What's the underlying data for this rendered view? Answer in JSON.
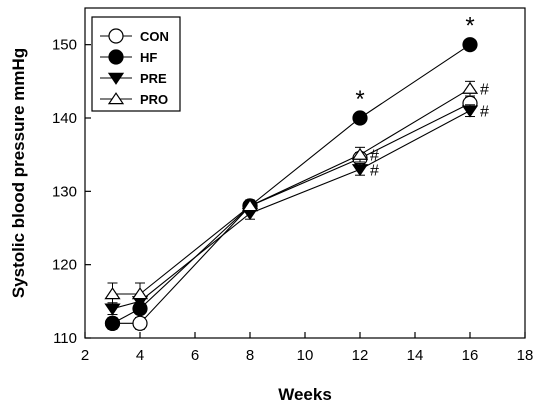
{
  "chart_data": {
    "type": "line",
    "title": "",
    "xlabel": "Weeks",
    "ylabel": "Systolic blood pressure mmHg",
    "xlim": [
      2,
      18
    ],
    "ylim": [
      110,
      155
    ],
    "xticks": [
      2,
      4,
      6,
      8,
      10,
      12,
      14,
      16,
      18
    ],
    "yticks": [
      110,
      120,
      130,
      140,
      150
    ],
    "grid": false,
    "legend_position": "top-left",
    "series": [
      {
        "name": "CON",
        "marker": "circle-open",
        "x": [
          3,
          4,
          8,
          12,
          16
        ],
        "y": [
          112,
          112,
          128,
          134.5,
          142
        ],
        "err": [
          0.8,
          0.8,
          0.8,
          0.8,
          0.8
        ]
      },
      {
        "name": "HF",
        "marker": "circle-filled",
        "x": [
          3,
          4,
          8,
          12,
          16
        ],
        "y": [
          112,
          114,
          128,
          140,
          150
        ],
        "err": [
          0.7,
          0.7,
          0.7,
          0.7,
          0.7
        ]
      },
      {
        "name": "PRE",
        "marker": "triangle-down-filled",
        "x": [
          3,
          4,
          8,
          12,
          16
        ],
        "y": [
          114,
          115,
          127,
          133,
          141
        ],
        "err": [
          0.8,
          0.8,
          0.8,
          0.8,
          0.8
        ]
      },
      {
        "name": "PRO",
        "marker": "triangle-up-open",
        "x": [
          3,
          4,
          8,
          12,
          16
        ],
        "y": [
          116,
          116,
          128,
          135,
          144
        ],
        "err": [
          1.5,
          1.5,
          0.8,
          1.0,
          1.0
        ]
      }
    ],
    "annotations": [
      {
        "text": "*",
        "x": 12,
        "y": 140
      },
      {
        "text": "*",
        "x": 16,
        "y": 150
      },
      {
        "text": "#",
        "x": 12,
        "y": 135
      },
      {
        "text": "#",
        "x": 12,
        "y": 133
      },
      {
        "text": "#",
        "x": 16,
        "y": 144
      },
      {
        "text": "#",
        "x": 16,
        "y": 141
      }
    ]
  }
}
